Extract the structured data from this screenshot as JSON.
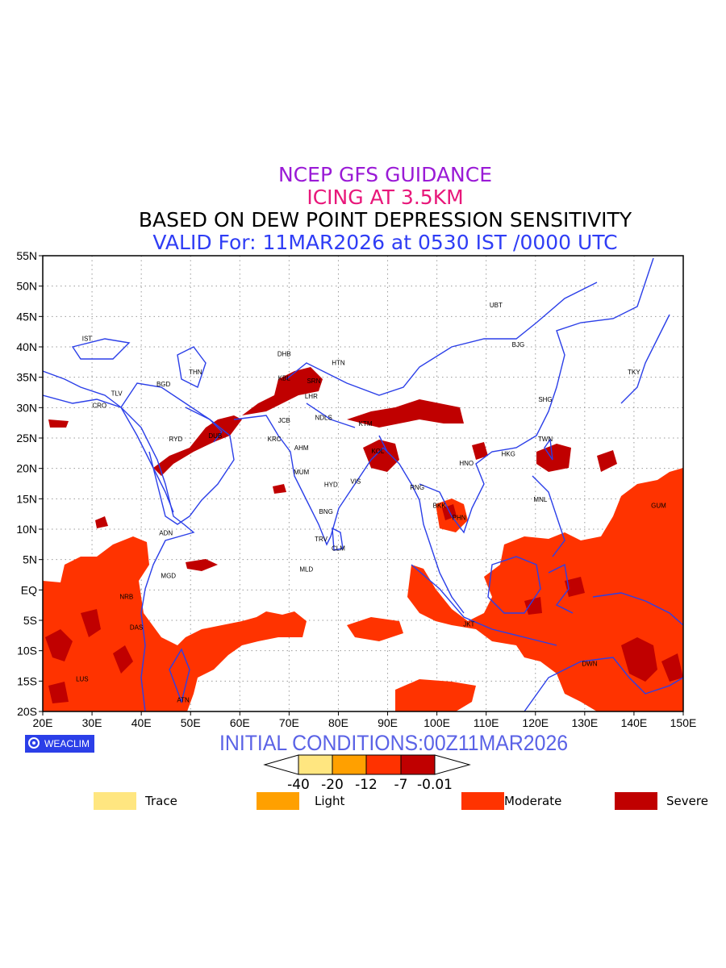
{
  "title": {
    "line1": "NCEP GFS GUIDANCE",
    "line2": "ICING AT 3.5KM",
    "line3": "BASED ON DEW POINT DEPRESSION SENSITIVITY",
    "line4": "VALID For: 11MAR2026 at 0530 IST /0000 UTC"
  },
  "map": {
    "lon_ticks": [
      "20E",
      "30E",
      "40E",
      "50E",
      "60E",
      "70E",
      "80E",
      "90E",
      "100E",
      "110E",
      "120E",
      "130E",
      "140E",
      "150E"
    ],
    "lat_ticks": [
      "55N",
      "50N",
      "45N",
      "40N",
      "35N",
      "30N",
      "25N",
      "20N",
      "15N",
      "10N",
      "5N",
      "EQ",
      "5S",
      "10S",
      "15S",
      "20S"
    ],
    "lon_range": [
      20,
      150
    ],
    "lat_range": [
      -20,
      55
    ],
    "grid": "dotted",
    "coastline_color": "#2b3fe8",
    "stations": [
      {
        "code": "UBT",
        "lon": 112,
        "lat": 46.5
      },
      {
        "code": "BJG",
        "lon": 116.5,
        "lat": 40
      },
      {
        "code": "TKY",
        "lon": 140,
        "lat": 35.5
      },
      {
        "code": "SHG",
        "lon": 122,
        "lat": 31
      },
      {
        "code": "TWN",
        "lon": 122,
        "lat": 24.5
      },
      {
        "code": "HKG",
        "lon": 114.5,
        "lat": 22
      },
      {
        "code": "HNO",
        "lon": 106,
        "lat": 20.5
      },
      {
        "code": "MNL",
        "lon": 121,
        "lat": 14.5
      },
      {
        "code": "GUM",
        "lon": 145,
        "lat": 13.5
      },
      {
        "code": "HTN",
        "lon": 80,
        "lat": 37
      },
      {
        "code": "DHB",
        "lon": 69,
        "lat": 38.5
      },
      {
        "code": "THN",
        "lon": 51,
        "lat": 35.5
      },
      {
        "code": "IST",
        "lon": 29,
        "lat": 41
      },
      {
        "code": "BGD",
        "lon": 44.5,
        "lat": 33.5
      },
      {
        "code": "TLV",
        "lon": 35,
        "lat": 32
      },
      {
        "code": "CRO",
        "lon": 31.5,
        "lat": 30
      },
      {
        "code": "RYD",
        "lon": 47,
        "lat": 24.5
      },
      {
        "code": "DUB",
        "lon": 55,
        "lat": 25
      },
      {
        "code": "KBL",
        "lon": 69,
        "lat": 34.5
      },
      {
        "code": "SRN",
        "lon": 75,
        "lat": 34
      },
      {
        "code": "LHR",
        "lon": 74.5,
        "lat": 31.5
      },
      {
        "code": "JCB",
        "lon": 69,
        "lat": 27.5
      },
      {
        "code": "NDLS",
        "lon": 77,
        "lat": 28
      },
      {
        "code": "KTM",
        "lon": 85.5,
        "lat": 27
      },
      {
        "code": "KRC",
        "lon": 67,
        "lat": 24.5
      },
      {
        "code": "AHM",
        "lon": 72.5,
        "lat": 23
      },
      {
        "code": "KOL",
        "lon": 88,
        "lat": 22.5
      },
      {
        "code": "MUM",
        "lon": 72.5,
        "lat": 19
      },
      {
        "code": "HYD",
        "lon": 78.5,
        "lat": 17
      },
      {
        "code": "VIS",
        "lon": 83.5,
        "lat": 17.5
      },
      {
        "code": "RNG",
        "lon": 96,
        "lat": 16.5
      },
      {
        "code": "BNG",
        "lon": 77.5,
        "lat": 12.5
      },
      {
        "code": "BKK",
        "lon": 100.5,
        "lat": 13.5
      },
      {
        "code": "PHN",
        "lon": 104.5,
        "lat": 11.5
      },
      {
        "code": "TRV",
        "lon": 76.5,
        "lat": 8
      },
      {
        "code": "CLM",
        "lon": 80,
        "lat": 6.5
      },
      {
        "code": "MLD",
        "lon": 73.5,
        "lat": 3
      },
      {
        "code": "ADN",
        "lon": 45,
        "lat": 9
      },
      {
        "code": "MGD",
        "lon": 45.5,
        "lat": 2
      },
      {
        "code": "NRB",
        "lon": 37,
        "lat": -1.5
      },
      {
        "code": "DAS",
        "lon": 39,
        "lat": -6.5
      },
      {
        "code": "JKT",
        "lon": 106.5,
        "lat": -6
      },
      {
        "code": "DWN",
        "lon": 131,
        "lat": -12.5
      },
      {
        "code": "LUS",
        "lon": 28,
        "lat": -15
      },
      {
        "code": "ATN",
        "lon": 48.5,
        "lat": -18.5
      }
    ]
  },
  "badge": {
    "label": "WEACLIM",
    "icon": "circle-logo-icon"
  },
  "initial_conditions": "INITIAL CONDITIONS:00Z11MAR2026",
  "colorbar": {
    "labels": [
      "-40",
      "-20",
      "-12",
      "-7",
      "-0.01"
    ],
    "colors": [
      "#ffe680",
      "#ffa000",
      "#ff3200",
      "#c00000"
    ]
  },
  "legend": [
    {
      "label": "Trace",
      "color": "#ffe680"
    },
    {
      "label": "Light",
      "color": "#ffa000"
    },
    {
      "label": "Moderate",
      "color": "#ff3300"
    },
    {
      "label": "Severe",
      "color": "#c00000"
    }
  ]
}
